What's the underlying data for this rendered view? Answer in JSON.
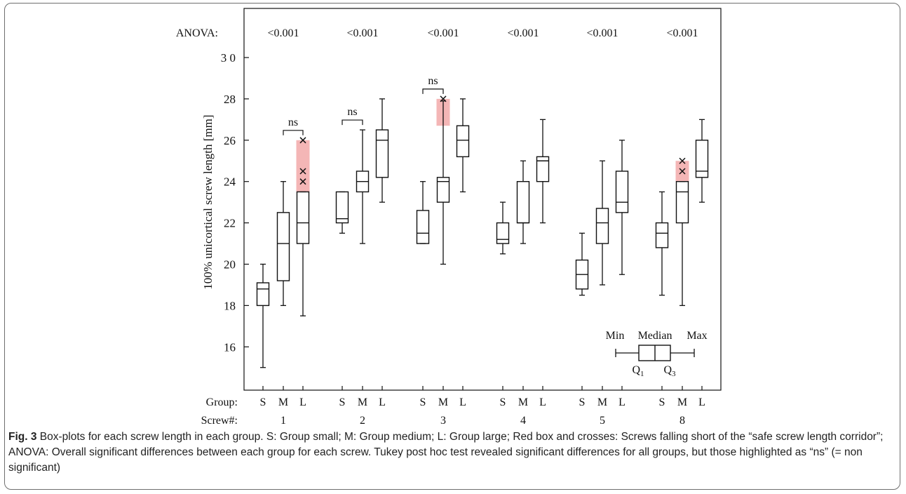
{
  "chart_data": {
    "type": "box",
    "ylabel": "100% unicortical screw length [mm]",
    "ylim": [
      13.5,
      31.5
    ],
    "yticks": [
      16,
      18,
      20,
      22,
      24,
      26,
      28,
      30
    ],
    "ytick_labels": [
      "16",
      "18",
      "20",
      "22",
      "24",
      "26",
      "28",
      "3 0"
    ],
    "group_row_label": "Group:",
    "screw_row_label": "Screw#:",
    "anova_label": "ANOVA:",
    "group_labels": [
      "S",
      "M",
      "L"
    ],
    "screws": [
      {
        "screw": "1",
        "anova": "<0.001",
        "groups": [
          {
            "group": "S",
            "min": 15,
            "q1": 18,
            "median": 18.8,
            "q3": 19.1,
            "max": 20,
            "outliers": []
          },
          {
            "group": "M",
            "min": 18,
            "q1": 19.2,
            "median": 21,
            "q3": 22.5,
            "max": 24,
            "outliers": []
          },
          {
            "group": "L",
            "min": 17.5,
            "q1": 21,
            "median": 22,
            "q3": 23.5,
            "max": 23.5,
            "outliers": [
              24,
              24.5,
              26
            ],
            "short_range": [
              23.5,
              26
            ]
          }
        ],
        "ns": {
          "between": [
            "M",
            "L"
          ],
          "label": "ns"
        }
      },
      {
        "screw": "2",
        "anova": "<0.001",
        "groups": [
          {
            "group": "S",
            "min": 21.5,
            "q1": 22,
            "median": 22.2,
            "q3": 23.5,
            "max": 23.5,
            "outliers": []
          },
          {
            "group": "M",
            "min": 21,
            "q1": 23.5,
            "median": 24,
            "q3": 24.5,
            "max": 26.5,
            "outliers": []
          },
          {
            "group": "L",
            "min": 23,
            "q1": 24.2,
            "median": 26,
            "q3": 26.5,
            "max": 28,
            "outliers": []
          }
        ],
        "ns": {
          "between": [
            "S",
            "M"
          ],
          "label": "ns"
        }
      },
      {
        "screw": "3",
        "anova": "<0.001",
        "groups": [
          {
            "group": "S",
            "min": 21,
            "q1": 21,
            "median": 21.5,
            "q3": 22.6,
            "max": 24,
            "outliers": []
          },
          {
            "group": "M",
            "min": 20,
            "q1": 23,
            "median": 24,
            "q3": 24.2,
            "max": 27.9,
            "outliers": [
              28
            ],
            "short_range": [
              26.7,
              28
            ]
          },
          {
            "group": "L",
            "min": 23.5,
            "q1": 25.2,
            "median": 26,
            "q3": 26.7,
            "max": 28,
            "outliers": []
          }
        ],
        "ns": {
          "between": [
            "S",
            "M"
          ],
          "label": "ns"
        }
      },
      {
        "screw": "4",
        "anova": "<0.001",
        "groups": [
          {
            "group": "S",
            "min": 20.5,
            "q1": 21,
            "median": 21.2,
            "q3": 22,
            "max": 23,
            "outliers": []
          },
          {
            "group": "M",
            "min": 21,
            "q1": 22,
            "median": 22,
            "q3": 24,
            "max": 25,
            "outliers": []
          },
          {
            "group": "L",
            "min": 22,
            "q1": 24,
            "median": 25,
            "q3": 25.2,
            "max": 27,
            "outliers": []
          }
        ]
      },
      {
        "screw": "5",
        "anova": "<0.001",
        "groups": [
          {
            "group": "S",
            "min": 18.5,
            "q1": 18.8,
            "median": 19.5,
            "q3": 20.2,
            "max": 21.5,
            "outliers": []
          },
          {
            "group": "M",
            "min": 19,
            "q1": 21,
            "median": 22,
            "q3": 22.7,
            "max": 25,
            "outliers": []
          },
          {
            "group": "L",
            "min": 19.5,
            "q1": 22.5,
            "median": 23,
            "q3": 24.5,
            "max": 26,
            "outliers": []
          }
        ]
      },
      {
        "screw": "8",
        "anova": "<0.001",
        "groups": [
          {
            "group": "S",
            "min": 18.5,
            "q1": 20.8,
            "median": 21.5,
            "q3": 22,
            "max": 23.5,
            "outliers": []
          },
          {
            "group": "M",
            "min": 18,
            "q1": 22,
            "median": 23.5,
            "q3": 24,
            "max": 24,
            "outliers": [
              24.5,
              25
            ],
            "short_range": [
              24,
              25
            ]
          },
          {
            "group": "L",
            "min": 23,
            "q1": 24.2,
            "median": 24.5,
            "q3": 26,
            "max": 27,
            "outliers": []
          }
        ]
      }
    ],
    "legend": {
      "min_label": "Min",
      "median_label": "Median",
      "max_label": "Max",
      "q1_label": "Q",
      "q1_sub": "1",
      "q3_label": "Q",
      "q3_sub": "3"
    },
    "colors": {
      "short_highlight": "#f4b6b6",
      "box_stroke": "#111111"
    }
  },
  "caption": {
    "fig_label": "Fig. 3",
    "text": " Box-plots for each screw length in each group. S: Group small; M: Group medium; L: Group large; Red box and crosses: Screws falling short of the “safe screw length corridor”; ANOVA: Overall significant differences between each group for each screw. Tukey post hoc test revealed significant differences for all groups, but those highlighted as “ns” (= non significant)"
  }
}
